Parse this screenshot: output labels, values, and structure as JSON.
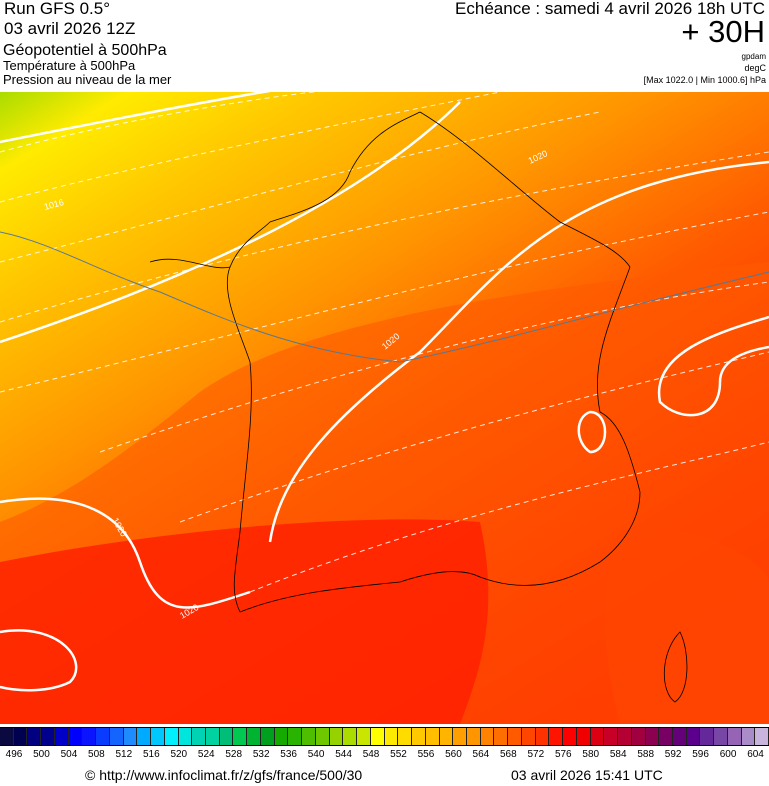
{
  "header": {
    "run": "Run GFS 0.5°",
    "run_date": "03 avril 2026 12Z",
    "layer1": "Géopotentiel à 500hPa",
    "layer2": "Température à 500hPa",
    "layer3": "Pression au niveau de la mer",
    "forecast_time": "Echéance : samedi 4 avril 2026 18h UTC",
    "lead": "+ 30H",
    "unit1": "gpdam",
    "unit2": "degC",
    "pressure_range": "[Max 1022.0 | Min 1000.6] hPa"
  },
  "map": {
    "isobar_labels": [
      "1016",
      "1020",
      "1020",
      "1020",
      "1020"
    ],
    "isobar_color": "#ffffff"
  },
  "colorbar": {
    "labels": [
      "496",
      "500",
      "504",
      "508",
      "512",
      "516",
      "520",
      "524",
      "528",
      "532",
      "536",
      "540",
      "544",
      "548",
      "552",
      "556",
      "560",
      "564",
      "568",
      "572",
      "576",
      "580",
      "584",
      "588",
      "592",
      "596",
      "600",
      "604"
    ],
    "colors": [
      "#0a0a40",
      "#000050",
      "#000080",
      "#00008c",
      "#0000c8",
      "#0000ff",
      "#0a14ff",
      "#0a3cff",
      "#1464ff",
      "#1e8cff",
      "#00aaff",
      "#00c8ff",
      "#00f0ff",
      "#00e6dc",
      "#00d2b4",
      "#00d2a0",
      "#00be78",
      "#00c850",
      "#00b432",
      "#00a01e",
      "#14aa00",
      "#28b400",
      "#50be00",
      "#6ec800",
      "#96d200",
      "#aadc00",
      "#c8e600",
      "#ffff00",
      "#ffeb00",
      "#ffdc00",
      "#ffc800",
      "#ffbe00",
      "#ffb400",
      "#ffa000",
      "#ff9600",
      "#ff8200",
      "#ff6e00",
      "#ff5a00",
      "#ff4600",
      "#ff3200",
      "#ff1400",
      "#ff0000",
      "#f00000",
      "#dc0014",
      "#c80028",
      "#b40032",
      "#a00040",
      "#8c0050",
      "#780064",
      "#640078",
      "#5a008c",
      "#64289b",
      "#7846a5",
      "#9664b4",
      "#aa8cc8",
      "#c8b4dc"
    ]
  },
  "footer": {
    "source": "© http://www.infoclimat.fr/z/gfs/france/500/30",
    "generated": "03 avril 2026 15:41 UTC"
  }
}
